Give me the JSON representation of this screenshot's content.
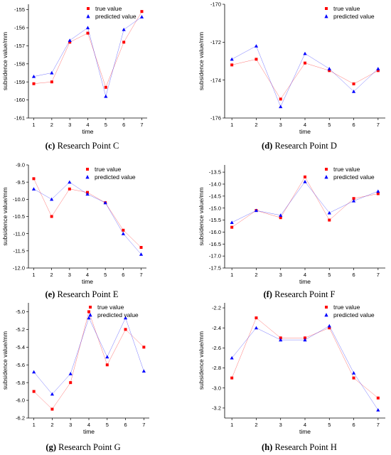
{
  "chart_data": [
    {
      "type": "line",
      "panel_letter": "(c)",
      "title": "Research Point C",
      "xlabel": "time",
      "ylabel": "subsidence value/mm",
      "x": [
        1,
        2,
        3,
        4,
        5,
        6,
        7
      ],
      "ylim": [
        -161,
        -154.7
      ],
      "yticks": [
        -161,
        -160,
        -159,
        -158,
        -157,
        -156,
        -155
      ],
      "legend_position": "top-right",
      "series": [
        {
          "name": "true value",
          "marker": "square",
          "color": "#ff0000",
          "values": [
            -159.1,
            -159.0,
            -156.8,
            -156.3,
            -159.3,
            -156.8,
            -155.1
          ]
        },
        {
          "name": "predicted value",
          "marker": "triangle",
          "color": "#0000ff",
          "values": [
            -158.7,
            -158.5,
            -156.7,
            -156.0,
            -159.8,
            -156.1,
            -155.4
          ]
        }
      ]
    },
    {
      "type": "line",
      "panel_letter": "(d)",
      "title": "Research Point D",
      "xlabel": "time",
      "ylabel": "subsidence value/mm",
      "x": [
        1,
        2,
        3,
        4,
        5,
        6,
        7
      ],
      "ylim": [
        -176,
        -170
      ],
      "yticks": [
        -176,
        -174,
        -172,
        -170
      ],
      "legend_position": "top-right",
      "series": [
        {
          "name": "true value",
          "marker": "square",
          "color": "#ff0000",
          "values": [
            -173.2,
            -172.9,
            -175.0,
            -173.1,
            -173.5,
            -174.2,
            -173.5
          ]
        },
        {
          "name": "predicted value",
          "marker": "triangle",
          "color": "#0000ff",
          "values": [
            -172.9,
            -172.2,
            -175.4,
            -172.6,
            -173.4,
            -174.6,
            -173.4
          ]
        }
      ]
    },
    {
      "type": "line",
      "panel_letter": "(e)",
      "title": "Research Point E",
      "xlabel": "time",
      "ylabel": "subsidence value/mm",
      "x": [
        1,
        2,
        3,
        4,
        5,
        6,
        7
      ],
      "ylim": [
        -12.0,
        -9.0
      ],
      "yticks": [
        -12.0,
        -11.5,
        -11.0,
        -10.5,
        -10.0,
        -9.5,
        -9.0
      ],
      "legend_position": "top-right",
      "series": [
        {
          "name": "true value",
          "marker": "square",
          "color": "#ff0000",
          "values": [
            -9.4,
            -10.5,
            -9.7,
            -9.8,
            -10.1,
            -10.9,
            -11.4
          ]
        },
        {
          "name": "predicted value",
          "marker": "triangle",
          "color": "#0000ff",
          "values": [
            -9.7,
            -10.0,
            -9.5,
            -9.85,
            -10.1,
            -11.0,
            -11.6
          ]
        }
      ]
    },
    {
      "type": "line",
      "panel_letter": "(f)",
      "title": "Research Point F",
      "xlabel": "time",
      "ylabel": "subsidence value/mm",
      "x": [
        1,
        2,
        3,
        4,
        5,
        6,
        7
      ],
      "ylim": [
        -17.5,
        -13.2
      ],
      "yticks": [
        -17.5,
        -17.0,
        -16.5,
        -16.0,
        -15.5,
        -15.0,
        -14.5,
        -14.0,
        -13.5
      ],
      "legend_position": "top-right",
      "series": [
        {
          "name": "true value",
          "marker": "square",
          "color": "#ff0000",
          "values": [
            -15.8,
            -15.1,
            -15.4,
            -13.7,
            -15.5,
            -14.6,
            -14.4
          ]
        },
        {
          "name": "predicted value",
          "marker": "triangle",
          "color": "#0000ff",
          "values": [
            -15.6,
            -15.1,
            -15.3,
            -13.9,
            -15.2,
            -14.7,
            -14.3
          ]
        }
      ]
    },
    {
      "type": "line",
      "panel_letter": "(g)",
      "title": "Research Point G",
      "xlabel": "time",
      "ylabel": "subsidence value/mm",
      "x": [
        1,
        2,
        3,
        4,
        5,
        6,
        7
      ],
      "ylim": [
        -6.2,
        -4.9
      ],
      "yticks": [
        -6.2,
        -6.0,
        -5.8,
        -5.6,
        -5.4,
        -5.2,
        -5.0
      ],
      "legend_position": "top-right",
      "series": [
        {
          "name": "true value",
          "marker": "square",
          "color": "#ff0000",
          "values": [
            -5.9,
            -6.1,
            -5.8,
            -5.0,
            -5.6,
            -5.2,
            -5.4
          ]
        },
        {
          "name": "predicted value",
          "marker": "triangle",
          "color": "#0000ff",
          "values": [
            -5.68,
            -5.93,
            -5.7,
            -5.07,
            -5.51,
            -5.07,
            -5.67
          ]
        }
      ]
    },
    {
      "type": "line",
      "panel_letter": "(h)",
      "title": "Research Point H",
      "xlabel": "time",
      "ylabel": "subsidence value/mm",
      "x": [
        1,
        2,
        3,
        4,
        5,
        6,
        7
      ],
      "ylim": [
        -3.3,
        -2.15
      ],
      "yticks": [
        -3.2,
        -3.0,
        -2.8,
        -2.6,
        -2.4,
        -2.2
      ],
      "legend_position": "top-right",
      "series": [
        {
          "name": "true value",
          "marker": "square",
          "color": "#ff0000",
          "values": [
            -2.9,
            -2.3,
            -2.5,
            -2.5,
            -2.4,
            -2.9,
            -3.1
          ]
        },
        {
          "name": "predicted value",
          "marker": "triangle",
          "color": "#0000ff",
          "values": [
            -2.7,
            -2.4,
            -2.52,
            -2.52,
            -2.38,
            -2.85,
            -3.22
          ]
        }
      ]
    }
  ]
}
